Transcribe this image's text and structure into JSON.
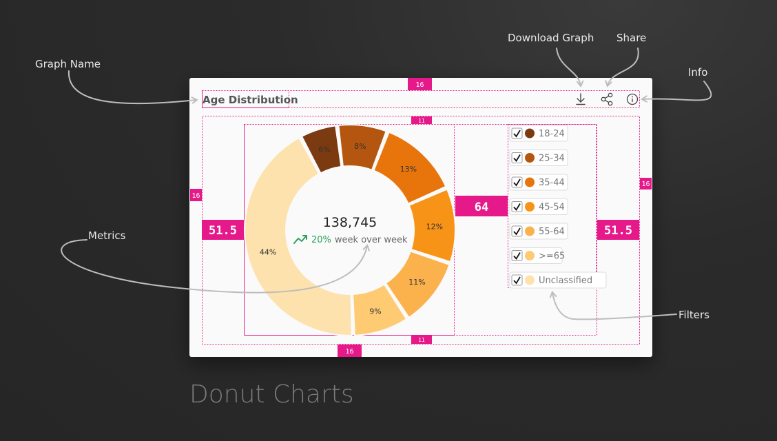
{
  "page_title": "Donut Charts",
  "annotations": {
    "graph_name": "Graph Name",
    "download_graph": "Download Graph",
    "share": "Share",
    "info": "Info",
    "metrics": "Metrics",
    "filters": "Filters"
  },
  "spacing_tags": {
    "top": "16",
    "left": "16",
    "right": "16",
    "bottom": "16",
    "inner_top": "11",
    "inner_bottom": "11",
    "left_gap": "51.5",
    "right_gap": "51.5",
    "middle_gap": "64"
  },
  "card": {
    "title": "Age Distribution",
    "icons": [
      "download-icon",
      "share-icon",
      "info-icon"
    ]
  },
  "metric": {
    "value": "138,745",
    "delta": "20%",
    "note": "week over week",
    "trend_icon": "trending-up-icon"
  },
  "colors": {
    "pink": "#e6198a",
    "positive": "#2e9e5e"
  },
  "chart_data": {
    "type": "pie",
    "title": "Age Distribution",
    "categories": [
      "18-24",
      "25-34",
      "35-44",
      "45-54",
      "55-64",
      ">=65",
      "Unclassified"
    ],
    "values": [
      6,
      8,
      13,
      12,
      11,
      9,
      44
    ],
    "slice_labels": [
      "6%",
      "8%",
      "13%",
      "12%",
      "11%",
      "9%",
      "44%"
    ],
    "colors": [
      "#7b3a10",
      "#b4560f",
      "#e8740c",
      "#f79316",
      "#fbb24d",
      "#fecb73",
      "#fee2ad"
    ],
    "legend": [
      {
        "label": "18-24",
        "color": "#7b3a10",
        "checked": true
      },
      {
        "label": "25-34",
        "color": "#b4560f",
        "checked": true
      },
      {
        "label": "35-44",
        "color": "#e8740c",
        "checked": true
      },
      {
        "label": "45-54",
        "color": "#f79316",
        "checked": true
      },
      {
        "label": "55-64",
        "color": "#fbb24d",
        "checked": true
      },
      {
        "label": ">=65",
        "color": "#fecb73",
        "checked": true
      },
      {
        "label": "Unclassified",
        "color": "#fee2ad",
        "checked": true
      }
    ],
    "legend_position": "right"
  }
}
